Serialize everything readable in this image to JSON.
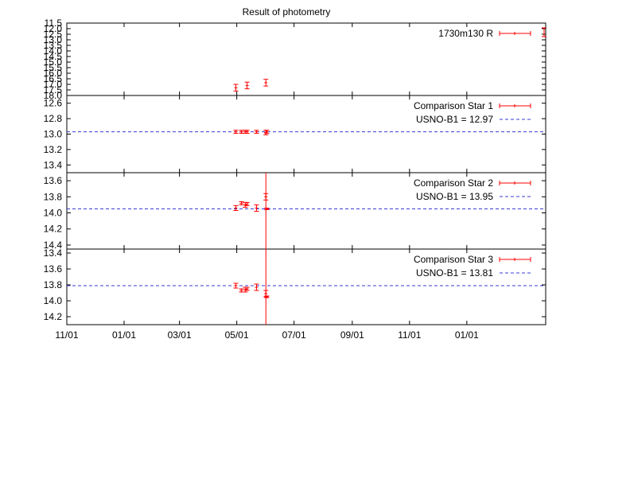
{
  "chart_data": {
    "type": "scatter",
    "title": "Result of photometry",
    "x_tick_labels": [
      "11/01",
      "01/01",
      "03/01",
      "05/01",
      "07/01",
      "09/01",
      "11/01",
      "01/01"
    ],
    "series_color": "#ff0000",
    "reference_color": "#3b3bd6",
    "panels": [
      {
        "id": "target",
        "y_reversed": true,
        "y_ticks": [
          "11.5",
          "12.0",
          "12.5",
          "13.0",
          "13.5",
          "14.0",
          "14.5",
          "15.0",
          "15.5",
          "16.0",
          "16.5",
          "17.0",
          "17.5",
          "18.0"
        ],
        "y_tick_values": [
          11.5,
          12.0,
          12.5,
          13.0,
          13.5,
          14.0,
          14.5,
          15.0,
          15.5,
          16.0,
          16.5,
          17.0,
          17.5,
          18.0
        ],
        "ylim": [
          11.5,
          18.0
        ],
        "legend": [
          {
            "label": "1730m130 R",
            "kind": "errorbar"
          }
        ],
        "points": [
          {
            "x": 180,
            "y": 17.3,
            "err": 0.3
          },
          {
            "x": 192,
            "y": 17.1,
            "err": 0.3
          },
          {
            "x": 212,
            "y": 16.85,
            "err": 0.3
          }
        ]
      },
      {
        "id": "comp1",
        "y_reversed": true,
        "y_ticks": [
          "12.6",
          "12.8",
          "13.0",
          "13.2",
          "13.4"
        ],
        "y_tick_values": [
          12.6,
          12.8,
          13.0,
          13.2,
          13.4
        ],
        "ylim": [
          12.5,
          13.5
        ],
        "legend": [
          {
            "label": "Comparison Star 1",
            "kind": "errorbar"
          },
          {
            "label": "USNO-B1 = 12.97",
            "kind": "reference"
          }
        ],
        "reference": 12.97,
        "points": [
          {
            "x": 180,
            "y": 12.97,
            "err": 0.02
          },
          {
            "x": 186,
            "y": 12.97,
            "err": 0.02
          },
          {
            "x": 190,
            "y": 12.97,
            "err": 0.02
          },
          {
            "x": 192,
            "y": 12.97,
            "err": 0.02
          },
          {
            "x": 202,
            "y": 12.97,
            "err": 0.02
          },
          {
            "x": 212,
            "y": 12.98,
            "err": 0.03
          },
          {
            "x": 213,
            "y": 12.97,
            "err": 0.02
          }
        ]
      },
      {
        "id": "comp2",
        "y_reversed": true,
        "y_ticks": [
          "13.6",
          "13.8",
          "14.0",
          "14.2",
          "14.4"
        ],
        "y_tick_values": [
          13.6,
          13.8,
          14.0,
          14.2,
          14.4
        ],
        "ylim": [
          13.5,
          14.45
        ],
        "legend": [
          {
            "label": "Comparison Star 2",
            "kind": "errorbar"
          },
          {
            "label": "USNO-B1 = 13.95",
            "kind": "reference"
          }
        ],
        "reference": 13.95,
        "points": [
          {
            "x": 180,
            "y": 13.94,
            "err": 0.03
          },
          {
            "x": 186,
            "y": 13.88,
            "err": 0.02
          },
          {
            "x": 190,
            "y": 13.9,
            "err": 0.03
          },
          {
            "x": 192,
            "y": 13.89,
            "err": 0.02
          },
          {
            "x": 202,
            "y": 13.94,
            "err": 0.04
          },
          {
            "x": 212,
            "y": 13.8,
            "err": 0.04
          },
          {
            "x": 213,
            "y": 13.95,
            "err": 0.01
          }
        ]
      },
      {
        "id": "comp3",
        "y_reversed": true,
        "y_ticks": [
          "13.4",
          "13.6",
          "13.8",
          "14.0",
          "14.2"
        ],
        "y_tick_values": [
          13.4,
          13.6,
          13.8,
          14.0,
          14.2
        ],
        "ylim": [
          13.35,
          14.3
        ],
        "legend": [
          {
            "label": "Comparison Star 3",
            "kind": "errorbar"
          },
          {
            "label": "USNO-B1 = 13.81",
            "kind": "reference"
          }
        ],
        "reference": 13.81,
        "points": [
          {
            "x": 180,
            "y": 13.81,
            "err": 0.03
          },
          {
            "x": 186,
            "y": 13.87,
            "err": 0.02
          },
          {
            "x": 190,
            "y": 13.86,
            "err": 0.03
          },
          {
            "x": 192,
            "y": 13.85,
            "err": 0.02
          },
          {
            "x": 202,
            "y": 13.83,
            "err": 0.04
          },
          {
            "x": 212,
            "y": 13.91,
            "err": 0.04
          },
          {
            "x": 213,
            "y": 13.95,
            "err": 0.01
          }
        ]
      }
    ]
  }
}
